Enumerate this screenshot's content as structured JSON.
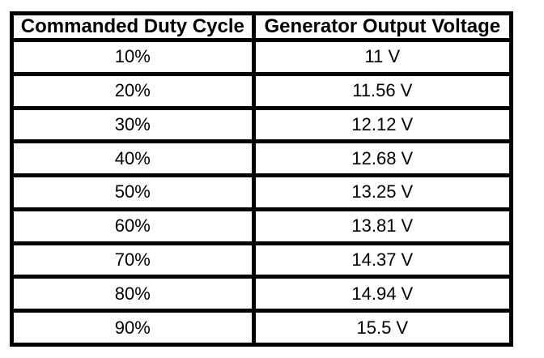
{
  "chart_data": {
    "type": "table",
    "title": "",
    "columns": [
      "Commanded Duty Cycle",
      "Generator Output Voltage"
    ],
    "rows": [
      [
        "10%",
        "11 V"
      ],
      [
        "20%",
        "11.56 V"
      ],
      [
        "30%",
        "12.12 V"
      ],
      [
        "40%",
        "12.68 V"
      ],
      [
        "50%",
        "13.25 V"
      ],
      [
        "60%",
        "13.81 V"
      ],
      [
        "70%",
        "14.37 V"
      ],
      [
        "80%",
        "14.94 V"
      ],
      [
        "90%",
        "15.5 V"
      ]
    ],
    "numeric": {
      "duty_cycle_percent": [
        10,
        20,
        30,
        40,
        50,
        60,
        70,
        80,
        90
      ],
      "generator_output_voltage_v": [
        11,
        11.56,
        12.12,
        12.68,
        13.25,
        13.81,
        14.37,
        14.94,
        15.5
      ]
    }
  },
  "colors": {
    "border": "#000000",
    "background": "#ffffff",
    "text": "#000000"
  }
}
